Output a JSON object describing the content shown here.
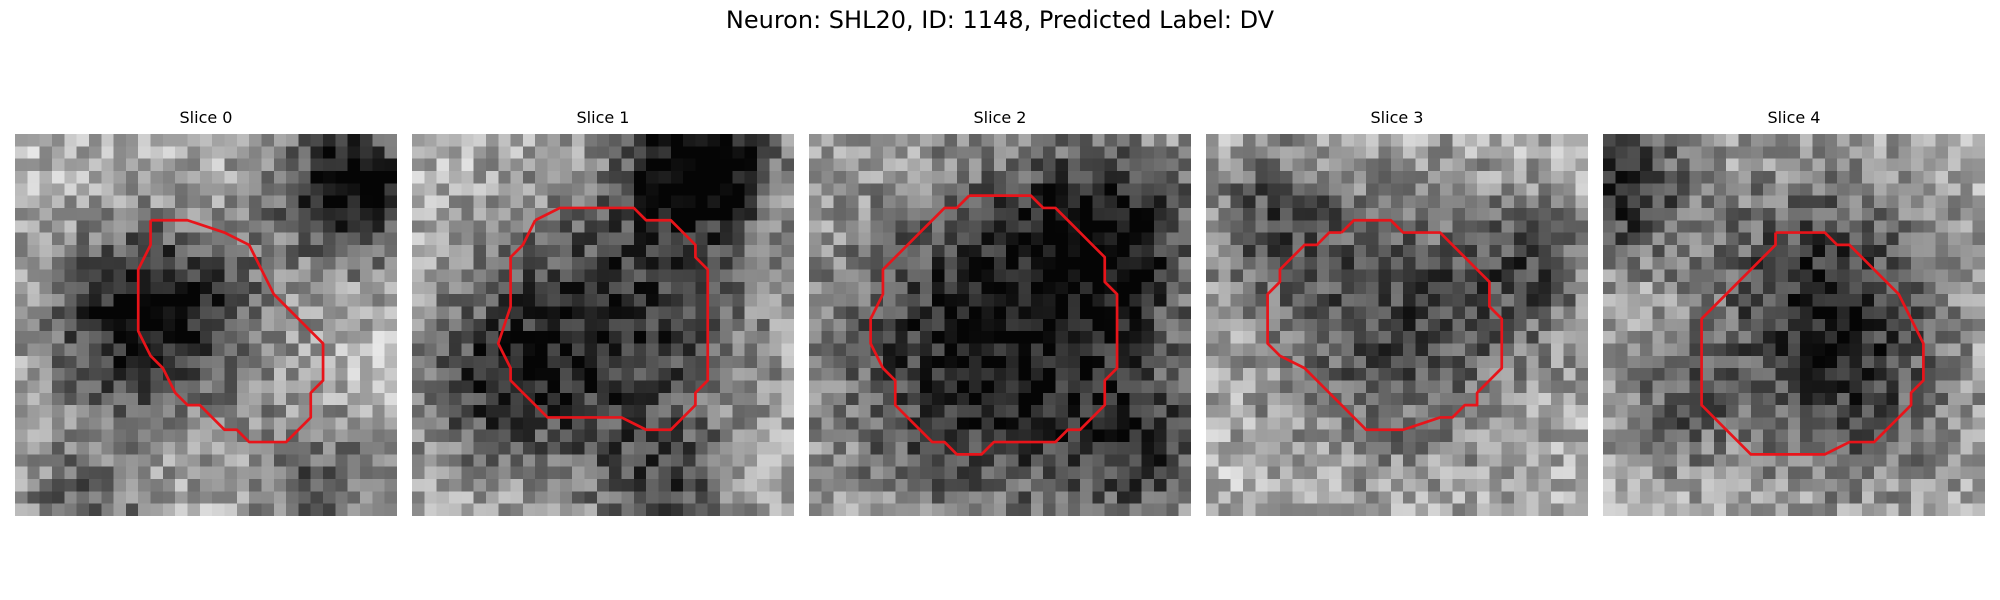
{
  "figure": {
    "title": "Neuron: SHL20, ID: 1148, Predicted Label: DV"
  },
  "contour_color": "#e8141a",
  "panels": [
    {
      "title": "Slice 0",
      "seed": 11,
      "dark_spots": [
        [
          13,
          14,
          6,
          0.45
        ],
        [
          27,
          4,
          4,
          0.75
        ],
        [
          8,
          15,
          5,
          0.35
        ],
        [
          5,
          30,
          4,
          0.35
        ],
        [
          24,
          28,
          4,
          0.35
        ]
      ]
    },
    {
      "title": "Slice 1",
      "seed": 23,
      "dark_spots": [
        [
          16,
          15,
          8,
          0.55
        ],
        [
          23,
          2,
          4,
          0.8
        ],
        [
          6,
          20,
          5,
          0.35
        ],
        [
          20,
          29,
          4,
          0.35
        ]
      ]
    },
    {
      "title": "Slice 2",
      "seed": 37,
      "dark_spots": [
        [
          15,
          17,
          10,
          0.65
        ],
        [
          24,
          7,
          5,
          0.5
        ],
        [
          27,
          25,
          4,
          0.35
        ]
      ]
    },
    {
      "title": "Slice 3",
      "seed": 41,
      "dark_spots": [
        [
          15,
          15,
          8,
          0.45
        ],
        [
          5,
          6,
          4,
          0.35
        ],
        [
          26,
          10,
          4,
          0.3
        ]
      ]
    },
    {
      "title": "Slice 4",
      "seed": 53,
      "dark_spots": [
        [
          17,
          12,
          7,
          0.5
        ],
        [
          1,
          4,
          4,
          0.55
        ],
        [
          5,
          22,
          4,
          0.3
        ],
        [
          20,
          22,
          6,
          0.3
        ]
      ]
    }
  ]
}
